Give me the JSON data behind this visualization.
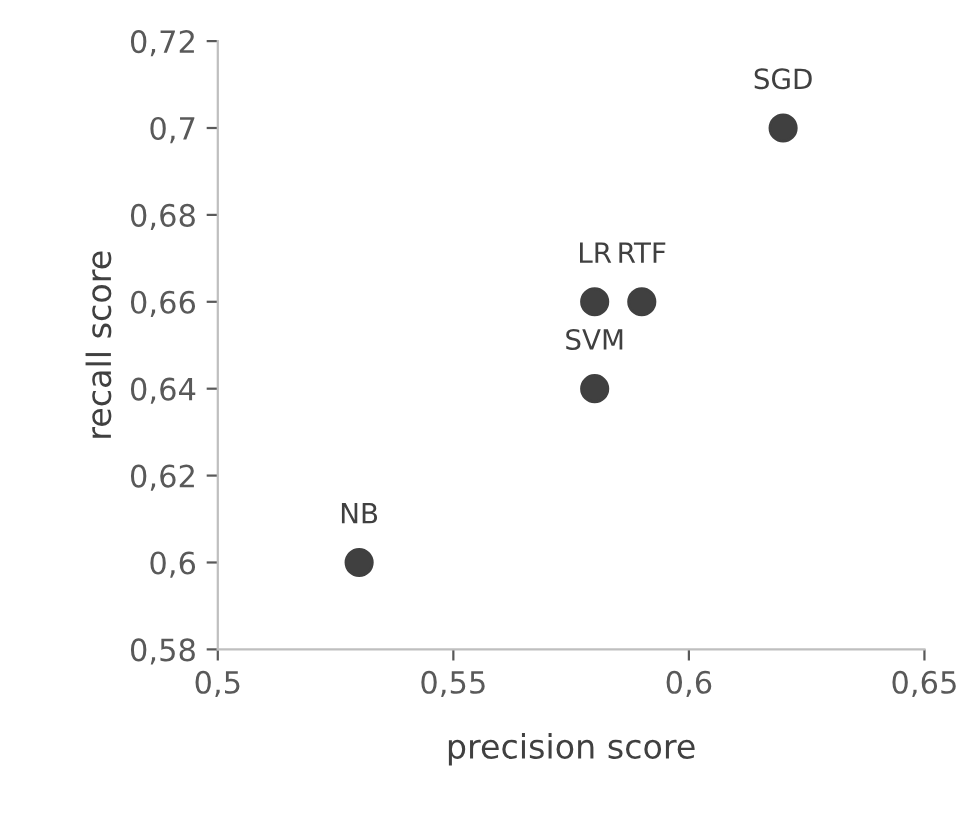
{
  "chart_data": {
    "type": "scatter",
    "xlabel": "precision score",
    "ylabel": "recall score",
    "x": [
      0.53,
      0.58,
      0.58,
      0.59,
      0.62
    ],
    "values": [
      0.6,
      0.64,
      0.66,
      0.66,
      0.7
    ],
    "color": "#404040",
    "marker": "circle",
    "grid": false,
    "legend": false,
    "xlim": [
      0.5,
      0.65
    ],
    "xticks": [
      {
        "value": 0.5,
        "label": "0,5"
      },
      {
        "value": 0.55,
        "label": "0,55"
      },
      {
        "value": 0.6,
        "label": "0,6"
      },
      {
        "value": 0.65,
        "label": "0,65"
      }
    ],
    "ylim": [
      0.58,
      0.72
    ],
    "yticks": [
      {
        "value": 0.58,
        "label": "0,58"
      },
      {
        "value": 0.6,
        "label": "0,6"
      },
      {
        "value": 0.62,
        "label": "0,62"
      },
      {
        "value": 0.64,
        "label": "0,64"
      },
      {
        "value": 0.66,
        "label": "0,66"
      },
      {
        "value": 0.68,
        "label": "0,68"
      },
      {
        "value": 0.7,
        "label": "0,7"
      },
      {
        "value": 0.72,
        "label": "0,72"
      }
    ],
    "annotations": [
      {
        "text": "NB",
        "x": 0.53,
        "y": 0.6
      },
      {
        "text": "SVM",
        "x": 0.58,
        "y": 0.64
      },
      {
        "text": "LR",
        "x": 0.58,
        "y": 0.66
      },
      {
        "text": "RTF",
        "x": 0.59,
        "y": 0.66
      },
      {
        "text": "SGD",
        "x": 0.62,
        "y": 0.7
      }
    ]
  }
}
